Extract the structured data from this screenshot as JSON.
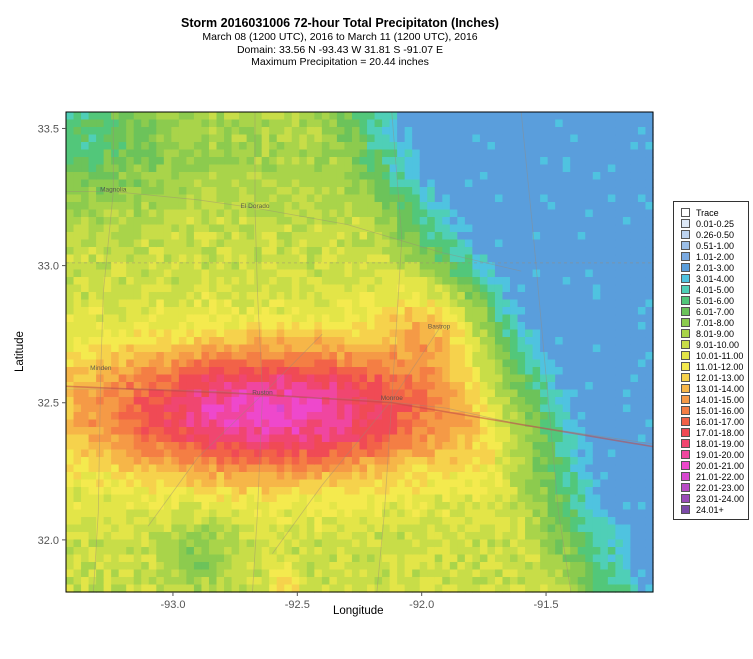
{
  "header": {
    "title": "Storm 2016031006 72-hour Total Precipitaton (Inches)",
    "line1": "March 08 (1200 UTC), 2016 to March 11 (1200 UTC), 2016",
    "line2": "Domain: 33.56 N -93.43 W 31.81 S -91.07 E",
    "line3": "Maximum Precipitation = 20.44 inches"
  },
  "map": {
    "xlabel": "Longitude",
    "ylabel": "Latitude",
    "x_ticks": [
      "-93.0",
      "-92.5",
      "-92.0",
      "-91.5"
    ],
    "y_ticks": [
      "33.5",
      "33.0",
      "32.5",
      "32.0"
    ],
    "xlim": [
      -93.43,
      -91.07
    ],
    "ylim": [
      31.81,
      33.56
    ],
    "places": [
      {
        "name": "Magnolia",
        "lon": -93.24,
        "lat": 33.27
      },
      {
        "name": "El Dorado",
        "lon": -92.67,
        "lat": 33.21
      },
      {
        "name": "Minden",
        "lon": -93.29,
        "lat": 32.62
      },
      {
        "name": "Ruston",
        "lon": -92.64,
        "lat": 32.53
      },
      {
        "name": "Monroe",
        "lon": -92.12,
        "lat": 32.51
      },
      {
        "name": "Bastrop",
        "lon": -91.93,
        "lat": 32.77
      }
    ]
  },
  "legend": {
    "items": [
      {
        "label": "Trace",
        "color": "#ffffff"
      },
      {
        "label": "0.01-0.25",
        "color": "#dde8f6"
      },
      {
        "label": "0.26-0.50",
        "color": "#bcd3f0"
      },
      {
        "label": "0.51-1.00",
        "color": "#9bbfe9"
      },
      {
        "label": "1.01-2.00",
        "color": "#7aaae2"
      },
      {
        "label": "2.01-3.00",
        "color": "#5a9edc"
      },
      {
        "label": "3.01-4.00",
        "color": "#4fc3e0"
      },
      {
        "label": "4.01-5.00",
        "color": "#4fcfb7"
      },
      {
        "label": "5.01-6.00",
        "color": "#52c77a"
      },
      {
        "label": "6.01-7.00",
        "color": "#6cc35a"
      },
      {
        "label": "7.01-8.00",
        "color": "#8ccb4e"
      },
      {
        "label": "8.01-9.00",
        "color": "#a9d44a"
      },
      {
        "label": "9.01-10.00",
        "color": "#c8dd48"
      },
      {
        "label": "10.01-11.00",
        "color": "#e3e548"
      },
      {
        "label": "11.01-12.00",
        "color": "#f4ea4e"
      },
      {
        "label": "12.01-13.00",
        "color": "#f6d24c"
      },
      {
        "label": "13.01-14.00",
        "color": "#f6b648"
      },
      {
        "label": "14.01-15.00",
        "color": "#f59a46"
      },
      {
        "label": "15.01-16.00",
        "color": "#f47e44"
      },
      {
        "label": "16.01-17.00",
        "color": "#f26248"
      },
      {
        "label": "17.01-18.00",
        "color": "#f04a55"
      },
      {
        "label": "18.01-19.00",
        "color": "#f04670"
      },
      {
        "label": "19.01-20.00",
        "color": "#f046a0"
      },
      {
        "label": "20.01-21.00",
        "color": "#ee48cc"
      },
      {
        "label": "21.01-22.00",
        "color": "#d848d0"
      },
      {
        "label": "22.01-23.00",
        "color": "#b84cc6"
      },
      {
        "label": "23.01-24.00",
        "color": "#9a4cb8"
      },
      {
        "label": "24.01+",
        "color": "#7c4aa8"
      }
    ]
  }
}
